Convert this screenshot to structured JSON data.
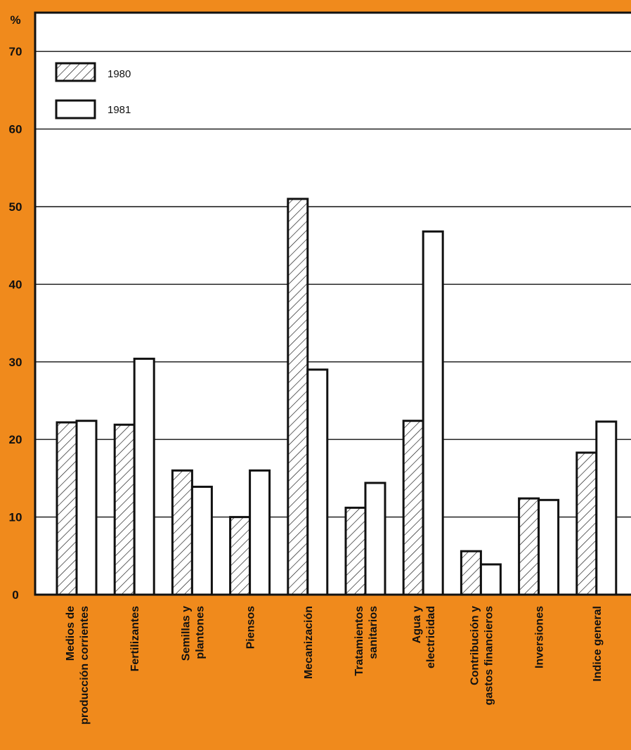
{
  "colors": {
    "background": "#f08a1c",
    "plot_area": "#ffffff",
    "ink": "#111111"
  },
  "chart_data": {
    "type": "bar",
    "ylabel": "%",
    "ylim": [
      0,
      70
    ],
    "yticks": [
      0,
      10,
      20,
      30,
      40,
      50,
      60,
      70
    ],
    "grid": true,
    "legend_position": "top-left",
    "categories": [
      [
        "Medios de",
        "producción corrientes"
      ],
      [
        "Fertilizantes"
      ],
      [
        "Semillas y",
        "plantones"
      ],
      [
        "Piensos"
      ],
      [
        "Mecanización"
      ],
      [
        "Tratamientos",
        "sanitarios"
      ],
      [
        "Agua y",
        "electricidad"
      ],
      [
        "Contribución y",
        "gastos financieros"
      ],
      [
        "Inversiones"
      ],
      [
        "Indice general"
      ]
    ],
    "series": [
      {
        "name": "1980",
        "pattern": "hatched",
        "values": [
          22.2,
          21.9,
          16.0,
          10.0,
          51.0,
          11.2,
          22.4,
          5.6,
          12.4,
          18.3
        ]
      },
      {
        "name": "1981",
        "pattern": "open",
        "values": [
          22.4,
          30.4,
          13.9,
          16.0,
          29.0,
          14.4,
          46.8,
          3.9,
          12.2,
          22.3
        ]
      }
    ]
  }
}
